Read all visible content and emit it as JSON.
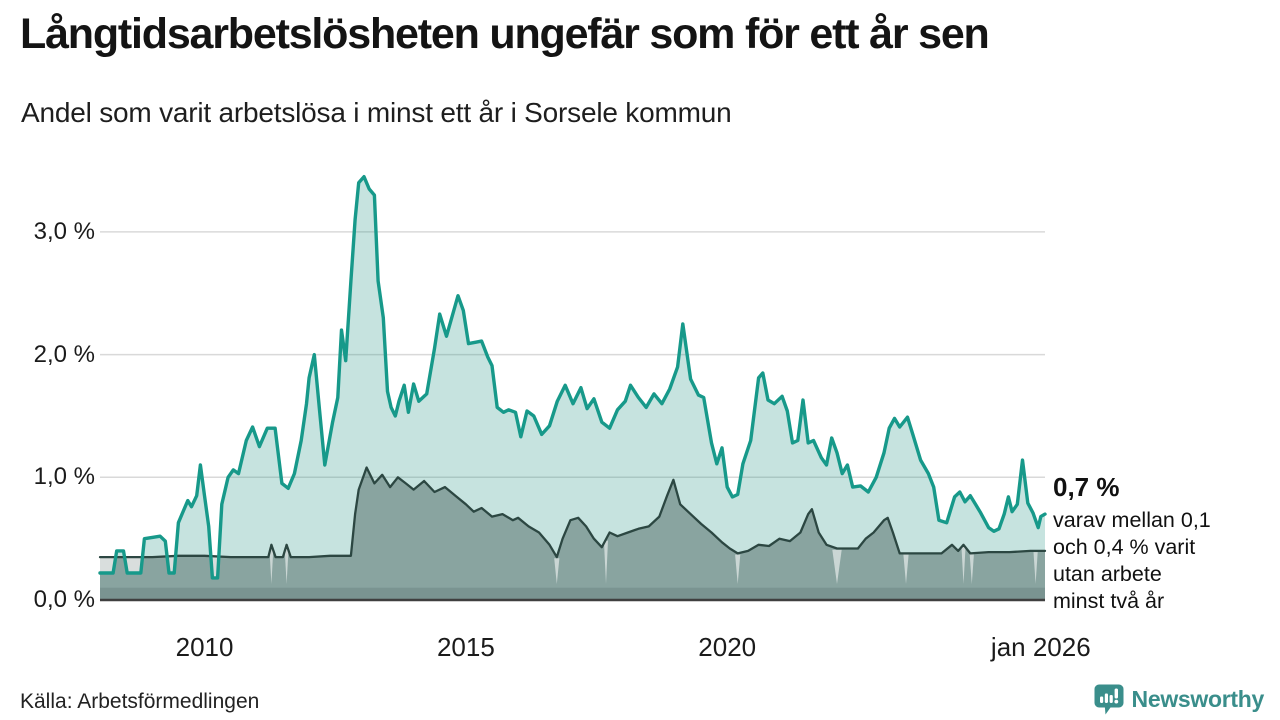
{
  "header": {
    "title": "Långtidsarbetslösheten ungefär som för ett år sen",
    "subtitle": "Andel som varit arbetslösa i minst ett år i Sorsele kommun"
  },
  "chart_data": {
    "type": "area",
    "title": "Långtidsarbetslösheten ungefär som för ett år sen",
    "subtitle": "Andel som varit arbetslösa i minst ett år i Sorsele kommun",
    "x_unit": "decimal_year",
    "xlim": [
      2008.0,
      2026.08
    ],
    "ylim": [
      0,
      3.5
    ],
    "grid": "horizontal",
    "legend": "none",
    "yticks": [
      {
        "value": 3.0,
        "label": "3,0 %"
      },
      {
        "value": 2.0,
        "label": "2,0 %"
      },
      {
        "value": 1.0,
        "label": "1,0 %"
      },
      {
        "value": 0.0,
        "label": "0,0 %"
      }
    ],
    "xticks": [
      {
        "value": 2010,
        "label": "2010"
      },
      {
        "value": 2015,
        "label": "2015"
      },
      {
        "value": 2020,
        "label": "2020"
      },
      {
        "value": 2026.0,
        "label": "jan 2026"
      }
    ],
    "colors": {
      "teal_line": "#17998a",
      "teal_fill": "rgba(34,148,133,0.26)",
      "dark_line": "#2c4742",
      "dark_fill": "rgba(44,71,66,0.40)",
      "censored_band": "rgba(44,71,66,0.18)",
      "bottom_strip": "rgba(44,71,66,0.16)",
      "gap_wedge": "rgba(255,255,255,0.55)",
      "grid": "#d9d9d9",
      "axis": "#3f3f3f"
    },
    "series": [
      {
        "name": "Andel arbetslösa minst ett år",
        "points": [
          [
            2008.0,
            0.22
          ],
          [
            2008.25,
            0.22
          ],
          [
            2008.32,
            0.4
          ],
          [
            2008.45,
            0.4
          ],
          [
            2008.52,
            0.22
          ],
          [
            2008.78,
            0.22
          ],
          [
            2008.85,
            0.5
          ],
          [
            2009.0,
            0.51
          ],
          [
            2009.15,
            0.52
          ],
          [
            2009.25,
            0.48
          ],
          [
            2009.32,
            0.22
          ],
          [
            2009.42,
            0.22
          ],
          [
            2009.5,
            0.63
          ],
          [
            2009.6,
            0.73
          ],
          [
            2009.68,
            0.81
          ],
          [
            2009.75,
            0.76
          ],
          [
            2009.85,
            0.85
          ],
          [
            2009.92,
            1.1
          ],
          [
            2010.0,
            0.85
          ],
          [
            2010.08,
            0.6
          ],
          [
            2010.15,
            0.18
          ],
          [
            2010.25,
            0.18
          ],
          [
            2010.33,
            0.78
          ],
          [
            2010.45,
            1.0
          ],
          [
            2010.55,
            1.06
          ],
          [
            2010.65,
            1.03
          ],
          [
            2010.8,
            1.3
          ],
          [
            2010.92,
            1.41
          ],
          [
            2011.05,
            1.25
          ],
          [
            2011.2,
            1.4
          ],
          [
            2011.35,
            1.4
          ],
          [
            2011.48,
            0.95
          ],
          [
            2011.6,
            0.91
          ],
          [
            2011.72,
            1.03
          ],
          [
            2011.85,
            1.3
          ],
          [
            2011.95,
            1.6
          ],
          [
            2012.0,
            1.81
          ],
          [
            2012.1,
            2.0
          ],
          [
            2012.2,
            1.55
          ],
          [
            2012.3,
            1.1
          ],
          [
            2012.45,
            1.45
          ],
          [
            2012.55,
            1.65
          ],
          [
            2012.62,
            2.2
          ],
          [
            2012.7,
            1.95
          ],
          [
            2012.8,
            2.6
          ],
          [
            2012.88,
            3.1
          ],
          [
            2012.95,
            3.4
          ],
          [
            2013.05,
            3.45
          ],
          [
            2013.15,
            3.35
          ],
          [
            2013.25,
            3.3
          ],
          [
            2013.32,
            2.6
          ],
          [
            2013.42,
            2.3
          ],
          [
            2013.5,
            1.7
          ],
          [
            2013.57,
            1.57
          ],
          [
            2013.65,
            1.5
          ],
          [
            2013.72,
            1.62
          ],
          [
            2013.82,
            1.75
          ],
          [
            2013.9,
            1.53
          ],
          [
            2014.0,
            1.76
          ],
          [
            2014.1,
            1.62
          ],
          [
            2014.25,
            1.68
          ],
          [
            2014.4,
            2.05
          ],
          [
            2014.5,
            2.33
          ],
          [
            2014.63,
            2.15
          ],
          [
            2014.85,
            2.48
          ],
          [
            2014.95,
            2.36
          ],
          [
            2015.05,
            2.09
          ],
          [
            2015.18,
            2.1
          ],
          [
            2015.3,
            2.11
          ],
          [
            2015.42,
            1.98
          ],
          [
            2015.5,
            1.91
          ],
          [
            2015.6,
            1.57
          ],
          [
            2015.72,
            1.53
          ],
          [
            2015.82,
            1.55
          ],
          [
            2015.95,
            1.53
          ],
          [
            2016.05,
            1.33
          ],
          [
            2016.17,
            1.54
          ],
          [
            2016.3,
            1.5
          ],
          [
            2016.45,
            1.35
          ],
          [
            2016.6,
            1.42
          ],
          [
            2016.75,
            1.62
          ],
          [
            2016.9,
            1.75
          ],
          [
            2017.05,
            1.6
          ],
          [
            2017.2,
            1.73
          ],
          [
            2017.32,
            1.56
          ],
          [
            2017.45,
            1.64
          ],
          [
            2017.6,
            1.45
          ],
          [
            2017.75,
            1.4
          ],
          [
            2017.9,
            1.55
          ],
          [
            2018.05,
            1.62
          ],
          [
            2018.15,
            1.75
          ],
          [
            2018.3,
            1.65
          ],
          [
            2018.45,
            1.57
          ],
          [
            2018.6,
            1.68
          ],
          [
            2018.75,
            1.6
          ],
          [
            2018.9,
            1.72
          ],
          [
            2019.05,
            1.9
          ],
          [
            2019.15,
            2.25
          ],
          [
            2019.3,
            1.8
          ],
          [
            2019.45,
            1.67
          ],
          [
            2019.55,
            1.65
          ],
          [
            2019.7,
            1.28
          ],
          [
            2019.8,
            1.11
          ],
          [
            2019.9,
            1.24
          ],
          [
            2020.0,
            0.92
          ],
          [
            2020.1,
            0.84
          ],
          [
            2020.2,
            0.86
          ],
          [
            2020.3,
            1.11
          ],
          [
            2020.45,
            1.3
          ],
          [
            2020.6,
            1.81
          ],
          [
            2020.68,
            1.85
          ],
          [
            2020.78,
            1.63
          ],
          [
            2020.9,
            1.6
          ],
          [
            2021.05,
            1.66
          ],
          [
            2021.15,
            1.54
          ],
          [
            2021.25,
            1.28
          ],
          [
            2021.35,
            1.3
          ],
          [
            2021.45,
            1.63
          ],
          [
            2021.55,
            1.28
          ],
          [
            2021.65,
            1.3
          ],
          [
            2021.8,
            1.16
          ],
          [
            2021.9,
            1.1
          ],
          [
            2022.0,
            1.32
          ],
          [
            2022.1,
            1.2
          ],
          [
            2022.2,
            1.03
          ],
          [
            2022.3,
            1.1
          ],
          [
            2022.4,
            0.92
          ],
          [
            2022.55,
            0.93
          ],
          [
            2022.7,
            0.88
          ],
          [
            2022.85,
            1.0
          ],
          [
            2023.0,
            1.2
          ],
          [
            2023.1,
            1.4
          ],
          [
            2023.2,
            1.48
          ],
          [
            2023.3,
            1.41
          ],
          [
            2023.45,
            1.49
          ],
          [
            2023.55,
            1.35
          ],
          [
            2023.7,
            1.14
          ],
          [
            2023.85,
            1.03
          ],
          [
            2023.95,
            0.92
          ],
          [
            2024.05,
            0.65
          ],
          [
            2024.2,
            0.63
          ],
          [
            2024.35,
            0.84
          ],
          [
            2024.45,
            0.88
          ],
          [
            2024.55,
            0.8
          ],
          [
            2024.65,
            0.85
          ],
          [
            2024.75,
            0.78
          ],
          [
            2024.85,
            0.71
          ],
          [
            2025.0,
            0.59
          ],
          [
            2025.1,
            0.56
          ],
          [
            2025.2,
            0.58
          ],
          [
            2025.3,
            0.7
          ],
          [
            2025.38,
            0.84
          ],
          [
            2025.45,
            0.72
          ],
          [
            2025.55,
            0.78
          ],
          [
            2025.65,
            1.14
          ],
          [
            2025.75,
            0.79
          ],
          [
            2025.85,
            0.71
          ],
          [
            2025.95,
            0.59
          ],
          [
            2026.0,
            0.68
          ],
          [
            2026.08,
            0.7
          ]
        ]
      },
      {
        "name": "Andel arbetslösa minst två år",
        "points": [
          [
            2008.0,
            0.35
          ],
          [
            2008.5,
            0.35
          ],
          [
            2009.0,
            0.35
          ],
          [
            2009.5,
            0.36
          ],
          [
            2010.0,
            0.36
          ],
          [
            2010.5,
            0.35
          ],
          [
            2011.0,
            0.35
          ],
          [
            2011.22,
            0.35
          ],
          [
            2011.28,
            0.45
          ],
          [
            2011.36,
            0.35
          ],
          [
            2011.5,
            0.35
          ],
          [
            2011.57,
            0.45
          ],
          [
            2011.65,
            0.35
          ],
          [
            2012.0,
            0.35
          ],
          [
            2012.4,
            0.36
          ],
          [
            2012.8,
            0.36
          ],
          [
            2012.88,
            0.7
          ],
          [
            2012.95,
            0.9
          ],
          [
            2013.1,
            1.08
          ],
          [
            2013.25,
            0.95
          ],
          [
            2013.4,
            1.02
          ],
          [
            2013.55,
            0.92
          ],
          [
            2013.7,
            1.0
          ],
          [
            2013.85,
            0.95
          ],
          [
            2014.0,
            0.9
          ],
          [
            2014.2,
            0.97
          ],
          [
            2014.4,
            0.88
          ],
          [
            2014.6,
            0.92
          ],
          [
            2014.8,
            0.85
          ],
          [
            2015.0,
            0.78
          ],
          [
            2015.15,
            0.72
          ],
          [
            2015.3,
            0.75
          ],
          [
            2015.5,
            0.68
          ],
          [
            2015.7,
            0.7
          ],
          [
            2015.9,
            0.65
          ],
          [
            2016.0,
            0.67
          ],
          [
            2016.2,
            0.6
          ],
          [
            2016.4,
            0.55
          ],
          [
            2016.6,
            0.45
          ],
          [
            2016.74,
            0.35
          ],
          [
            2016.85,
            0.5
          ],
          [
            2017.0,
            0.65
          ],
          [
            2017.15,
            0.67
          ],
          [
            2017.3,
            0.6
          ],
          [
            2017.45,
            0.5
          ],
          [
            2017.6,
            0.43
          ],
          [
            2017.75,
            0.55
          ],
          [
            2017.9,
            0.52
          ],
          [
            2018.1,
            0.55
          ],
          [
            2018.3,
            0.58
          ],
          [
            2018.5,
            0.6
          ],
          [
            2018.7,
            0.68
          ],
          [
            2018.85,
            0.85
          ],
          [
            2018.97,
            0.98
          ],
          [
            2019.1,
            0.78
          ],
          [
            2019.3,
            0.7
          ],
          [
            2019.5,
            0.62
          ],
          [
            2019.7,
            0.55
          ],
          [
            2019.9,
            0.47
          ],
          [
            2020.05,
            0.42
          ],
          [
            2020.2,
            0.38
          ],
          [
            2020.4,
            0.4
          ],
          [
            2020.6,
            0.45
          ],
          [
            2020.8,
            0.44
          ],
          [
            2021.0,
            0.5
          ],
          [
            2021.2,
            0.48
          ],
          [
            2021.4,
            0.55
          ],
          [
            2021.55,
            0.7
          ],
          [
            2021.62,
            0.74
          ],
          [
            2021.75,
            0.55
          ],
          [
            2021.9,
            0.45
          ],
          [
            2022.1,
            0.42
          ],
          [
            2022.3,
            0.42
          ],
          [
            2022.5,
            0.42
          ],
          [
            2022.65,
            0.5
          ],
          [
            2022.8,
            0.55
          ],
          [
            2023.0,
            0.65
          ],
          [
            2023.07,
            0.67
          ],
          [
            2023.17,
            0.55
          ],
          [
            2023.3,
            0.38
          ],
          [
            2023.6,
            0.38
          ],
          [
            2023.9,
            0.38
          ],
          [
            2024.1,
            0.38
          ],
          [
            2024.3,
            0.45
          ],
          [
            2024.42,
            0.4
          ],
          [
            2024.52,
            0.45
          ],
          [
            2024.65,
            0.38
          ],
          [
            2025.0,
            0.39
          ],
          [
            2025.4,
            0.39
          ],
          [
            2025.8,
            0.4
          ],
          [
            2026.08,
            0.4
          ]
        ]
      }
    ],
    "bottom_band": {
      "from": 0.0,
      "to": 0.1
    },
    "censored_gap_marks": [
      {
        "year": 2011.28,
        "halfwidth": 0.04
      },
      {
        "year": 2011.57,
        "halfwidth": 0.04
      },
      {
        "year": 2016.74,
        "halfwidth": 0.05
      },
      {
        "year": 2017.68,
        "halfwidth": 0.04
      },
      {
        "year": 2020.2,
        "halfwidth": 0.05
      },
      {
        "year": 2022.1,
        "halfwidth": 0.09
      },
      {
        "year": 2023.42,
        "halfwidth": 0.05
      },
      {
        "year": 2024.52,
        "halfwidth": 0.04
      },
      {
        "year": 2024.68,
        "halfwidth": 0.04
      },
      {
        "year": 2025.9,
        "halfwidth": 0.04
      }
    ],
    "annotation": {
      "value_label": "0,7 %",
      "lines": [
        "varav mellan 0,1",
        "och 0,4 % varit",
        "utan arbete",
        "minst två år"
      ]
    }
  },
  "footer": {
    "source": "Källa: Arbetsförmedlingen",
    "logo_text": "Newsworthy",
    "logo_color": "#3a8e8b"
  }
}
